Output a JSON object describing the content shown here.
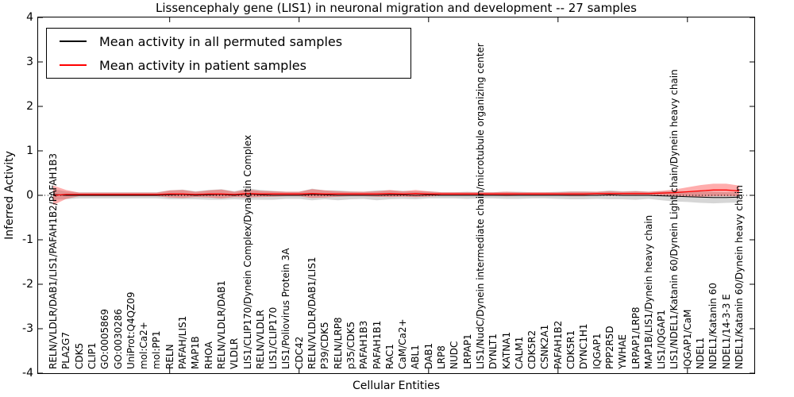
{
  "title": "Lissencephaly gene (LIS1) in neuronal migration and development -- 27 samples",
  "legend": {
    "items": [
      {
        "label": "Mean activity in all permuted samples",
        "color": "#000000"
      },
      {
        "label": "Mean activity in patient samples",
        "color": "#ff0000"
      }
    ]
  },
  "chart_data": {
    "type": "line",
    "title": "Lissencephaly gene (LIS1) in neuronal migration and development -- 27 samples",
    "xlabel": "Cellular Entities",
    "ylabel": "Inferred Activity",
    "ylim": [
      -4,
      4
    ],
    "yticks": [
      4,
      3,
      2,
      1,
      0,
      -1,
      -2,
      -3,
      -4
    ],
    "x_major_tick_every": 10,
    "grid": false,
    "zero_line": true,
    "legend_position": "upper left",
    "categories": [
      "RELN/VLDLR/DAB1/LIS1/PAFAH1B2/PAFAH1B3",
      "PLA2G7",
      "CDK5",
      "CLIP1",
      "GO:0005869",
      "GO:0030286",
      "UniProt:Q4QZ09",
      "mol:Ca2+",
      "mol:PP1",
      "RELN",
      "PAFAH/LIS1",
      "MAP1B",
      "RHOA",
      "RELN/VLDLR/DAB1",
      "VLDLR",
      "LIS1/CLIP170/Dynein Complex/Dynactin Complex",
      "RELN/VLDLR",
      "LIS1/CLIP170",
      "LIS1/Poliovirus Protein 3A",
      "CDC42",
      "RELN/VLDLR/DAB1/LIS1",
      "P39/CDK5",
      "RELN/LRP8",
      "p35/CDK5",
      "PAFAH1B3",
      "PAFAH1B1",
      "RAC1",
      "CaM/Ca2+",
      "ABL1",
      "DAB1",
      "LRP8",
      "NUDC",
      "LRPAP1",
      "LIS1/NudC/Dynein intermediate chain/microtubule organizing center",
      "DYNLT1",
      "KATNA1",
      "CALM1",
      "CDK5R2",
      "CSNK2A1",
      "PAFAH1B2",
      "CDK5R1",
      "DYNC1H1",
      "IQGAP1",
      "PPP2R5D",
      "YWHAE",
      "LRPAP1/LRP8",
      "MAP1B/LIS1/Dynein heavy chain",
      "LIS1/IQGAP1",
      "LIS1/NDEL1/Katanin 60/Dynein Light chain/Dynein heavy chain",
      "IQGAP1/CaM",
      "NDEL1",
      "NDEL1/Katanin 60",
      "NDEL1/14-3-3 E",
      "NDEL1/Katanin 60/Dynein heavy chain"
    ],
    "series": [
      {
        "name": "Mean activity in all permuted samples",
        "color": "#000000",
        "band_color": "rgba(0,0,0,0.16)",
        "line_width": 1,
        "values": [
          0.02,
          0,
          0,
          0,
          0,
          0,
          0,
          0,
          0,
          0.01,
          0.02,
          0,
          0.01,
          0.02,
          0,
          0.03,
          0.01,
          0,
          0,
          0,
          0.02,
          0.01,
          0,
          0,
          0,
          0,
          0.01,
          0.01,
          0,
          0.01,
          0,
          0,
          0,
          0,
          0,
          0,
          0,
          0,
          0,
          0,
          0,
          0,
          0,
          0.01,
          0,
          0,
          0,
          -0.01,
          -0.02,
          -0.03,
          -0.04,
          -0.05,
          -0.05,
          -0.04
        ],
        "band": [
          0.12,
          0.09,
          0.07,
          0.07,
          0.07,
          0.07,
          0.07,
          0.07,
          0.07,
          0.1,
          0.11,
          0.09,
          0.11,
          0.12,
          0.09,
          0.13,
          0.11,
          0.1,
          0.08,
          0.08,
          0.13,
          0.1,
          0.11,
          0.09,
          0.08,
          0.11,
          0.1,
          0.09,
          0.09,
          0.08,
          0.07,
          0.07,
          0.08,
          0.07,
          0.07,
          0.08,
          0.08,
          0.07,
          0.07,
          0.08,
          0.09,
          0.09,
          0.08,
          0.1,
          0.09,
          0.1,
          0.08,
          0.1,
          0.12,
          0.12,
          0.13,
          0.13,
          0.12,
          0.12
        ]
      },
      {
        "name": "Mean activity in patient samples",
        "color": "#ff0000",
        "band_color": "rgba(255,0,0,0.32)",
        "line_width": 1.3,
        "values": [
          0.0,
          0.02,
          0.02,
          0.02,
          0.02,
          0.02,
          0.02,
          0.02,
          0.02,
          0.03,
          0.03,
          0.02,
          0.03,
          0.03,
          0.02,
          0.04,
          0.03,
          0.03,
          0.03,
          0.03,
          0.04,
          0.03,
          0.03,
          0.03,
          0.03,
          0.03,
          0.04,
          0.03,
          0.04,
          0.03,
          0.03,
          0.03,
          0.03,
          0.03,
          0.03,
          0.03,
          0.03,
          0.03,
          0.03,
          0.03,
          0.03,
          0.03,
          0.04,
          0.04,
          0.04,
          0.04,
          0.04,
          0.05,
          0.06,
          0.08,
          0.1,
          0.12,
          0.12,
          0.1
        ],
        "band": [
          0.22,
          0.1,
          0.04,
          0.04,
          0.04,
          0.04,
          0.04,
          0.04,
          0.04,
          0.08,
          0.09,
          0.06,
          0.08,
          0.1,
          0.06,
          0.09,
          0.07,
          0.06,
          0.05,
          0.05,
          0.1,
          0.08,
          0.06,
          0.05,
          0.05,
          0.06,
          0.08,
          0.06,
          0.08,
          0.06,
          0.04,
          0.04,
          0.04,
          0.04,
          0.04,
          0.05,
          0.04,
          0.04,
          0.04,
          0.04,
          0.05,
          0.05,
          0.04,
          0.05,
          0.04,
          0.05,
          0.04,
          0.05,
          0.07,
          0.1,
          0.13,
          0.14,
          0.14,
          0.12
        ]
      }
    ]
  }
}
